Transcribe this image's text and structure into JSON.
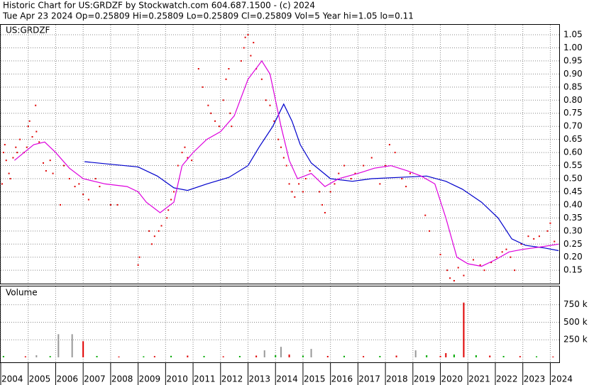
{
  "chart_data": [
    {
      "type": "scatter",
      "title": "Historic Chart for US:GRDZF by Stockwatch.com 604.687.1500 - (c) 2024",
      "subtitle": "Tue Apr 23 2024   Op=0.25809   Hi=0.25809   Lo=0.25809   Cl=0.25809   Vol=5   Year hi=1.05   lo=0.11",
      "annotation": "US:GRDZF",
      "xlim": [
        2004,
        2024.35
      ],
      "xticks": [
        2004,
        2005,
        2006,
        2007,
        2008,
        2009,
        2010,
        2011,
        2012,
        2013,
        2014,
        2015,
        2016,
        2017,
        2018,
        2019,
        2020,
        2021,
        2022,
        2023,
        2024
      ],
      "ylim": [
        0.099,
        1.088
      ],
      "yticks": [
        0.15,
        {
          "value": 0.2,
          "label": "0.20"
        },
        0.25,
        {
          "value": 0.3,
          "label": "0.30"
        },
        0.35,
        {
          "value": 0.4,
          "label": "0.40"
        },
        0.45,
        {
          "value": 0.5,
          "label": "0.50"
        },
        0.55,
        {
          "value": 0.6,
          "label": "0.60"
        },
        0.65,
        {
          "value": 0.7,
          "label": "0.70"
        },
        0.75,
        {
          "value": 0.8,
          "label": "0.80"
        },
        0.85,
        {
          "value": 0.9,
          "label": "0.90"
        },
        0.95,
        {
          "value": 1.0,
          "label": "1.00"
        },
        1.05
      ],
      "grid": true,
      "series": [
        {
          "type": "scatter",
          "color": "#e00000",
          "x": [
            2004.05,
            2004.1,
            2004.15,
            2004.2,
            2004.3,
            2004.35,
            2004.45,
            2004.55,
            2004.6,
            2004.7,
            2004.85,
            2004.95,
            2005.0,
            2005.05,
            2005.15,
            2005.27,
            2005.3,
            2005.4,
            2005.55,
            2005.65,
            2005.8,
            2005.9,
            2006.17,
            2006.3,
            2006.5,
            2006.7,
            2006.85,
            2007.0,
            2007.2,
            2007.45,
            2007.6,
            2008.0,
            2008.25,
            2009.0,
            2009.05,
            2009.4,
            2009.5,
            2009.6,
            2009.75,
            2009.85,
            2010.05,
            2010.1,
            2010.2,
            2010.3,
            2010.45,
            2010.6,
            2010.7,
            2010.8,
            2010.95,
            2011.2,
            2011.35,
            2011.55,
            2011.65,
            2011.8,
            2011.95,
            2012.1,
            2012.2,
            2012.3,
            2012.35,
            2012.4,
            2012.75,
            2012.85,
            2012.9,
            2013.0,
            2013.1,
            2013.2,
            2013.3,
            2013.5,
            2013.65,
            2013.8,
            2013.95,
            2014.1,
            2014.2,
            2014.3,
            2014.4,
            2014.5,
            2014.6,
            2014.7,
            2014.85,
            2015.0,
            2015.1,
            2015.25,
            2015.6,
            2015.7,
            2015.8,
            2016.0,
            2016.15,
            2016.3,
            2016.5,
            2016.75,
            2016.9,
            2017.2,
            2017.5,
            2017.8,
            2018.0,
            2018.15,
            2018.35,
            2018.6,
            2018.75,
            2018.9,
            2019.45,
            2019.6,
            2020.0,
            2020.25,
            2020.35,
            2020.5,
            2020.65,
            2020.85,
            2021.2,
            2021.45,
            2021.6,
            2021.85,
            2022.05,
            2022.25,
            2022.4,
            2022.55,
            2022.7,
            2022.95,
            2023.2,
            2023.4,
            2023.6,
            2023.9,
            2024.0,
            2024.15
          ],
          "values": [
            0.48,
            0.6,
            0.63,
            0.57,
            0.52,
            0.5,
            0.58,
            0.62,
            0.6,
            0.65,
            0.6,
            0.62,
            0.7,
            0.72,
            0.66,
            0.78,
            0.68,
            0.64,
            0.56,
            0.53,
            0.57,
            0.52,
            0.4,
            0.55,
            0.5,
            0.47,
            0.48,
            0.44,
            0.42,
            0.5,
            0.47,
            0.4,
            0.4,
            0.17,
            0.2,
            0.3,
            0.25,
            0.28,
            0.3,
            0.32,
            0.35,
            0.38,
            0.42,
            0.45,
            0.55,
            0.6,
            0.62,
            0.58,
            0.57,
            0.92,
            0.85,
            0.78,
            0.75,
            0.72,
            0.7,
            0.8,
            0.88,
            0.92,
            0.75,
            0.7,
            0.95,
            1.0,
            1.04,
            1.05,
            0.97,
            1.02,
            0.92,
            0.88,
            0.8,
            0.78,
            0.72,
            0.65,
            0.62,
            0.58,
            0.55,
            0.48,
            0.45,
            0.43,
            0.48,
            0.45,
            0.5,
            0.53,
            0.45,
            0.4,
            0.37,
            0.45,
            0.48,
            0.52,
            0.55,
            0.5,
            0.52,
            0.55,
            0.58,
            0.48,
            0.55,
            0.63,
            0.6,
            0.5,
            0.47,
            0.52,
            0.36,
            0.3,
            0.21,
            0.15,
            0.12,
            0.11,
            0.16,
            0.13,
            0.19,
            0.17,
            0.15,
            0.18,
            0.2,
            0.22,
            0.23,
            0.2,
            0.15,
            0.25,
            0.28,
            0.27,
            0.28,
            0.3,
            0.33,
            0.26
          ]
        },
        {
          "type": "line",
          "color": "#0000cc",
          "x": [
            2007.05,
            2008,
            2009,
            2009.7,
            2010.3,
            2010.8,
            2011.5,
            2012.3,
            2013,
            2013.4,
            2013.9,
            2014.3,
            2014.6,
            2014.9,
            2015.3,
            2016,
            2016.8,
            2017.5,
            2018.5,
            2019.5,
            2020.2,
            2020.8,
            2021.5,
            2022.1,
            2022.6,
            2023.1,
            2023.8,
            2024.3
          ],
          "values": [
            0.565,
            0.555,
            0.545,
            0.51,
            0.465,
            0.455,
            0.48,
            0.505,
            0.55,
            0.62,
            0.7,
            0.785,
            0.72,
            0.63,
            0.56,
            0.5,
            0.49,
            0.5,
            0.505,
            0.51,
            0.49,
            0.46,
            0.41,
            0.35,
            0.27,
            0.245,
            0.235,
            0.225
          ]
        },
        {
          "type": "line",
          "color": "#dd00dd",
          "x": [
            2004.5,
            2005.2,
            2005.6,
            2006,
            2006.5,
            2007,
            2007.8,
            2008.6,
            2009,
            2009.3,
            2009.8,
            2010.3,
            2010.6,
            2011,
            2011.5,
            2012,
            2012.5,
            2013,
            2013.5,
            2013.8,
            2014.2,
            2014.5,
            2014.8,
            2015.3,
            2015.8,
            2016.3,
            2017,
            2017.6,
            2018.2,
            2018.8,
            2019.3,
            2019.8,
            2020.2,
            2020.6,
            2021,
            2021.5,
            2022,
            2022.5,
            2023,
            2023.7,
            2024.3
          ],
          "values": [
            0.57,
            0.63,
            0.64,
            0.6,
            0.54,
            0.5,
            0.48,
            0.47,
            0.45,
            0.41,
            0.37,
            0.41,
            0.55,
            0.6,
            0.65,
            0.68,
            0.74,
            0.88,
            0.95,
            0.9,
            0.7,
            0.57,
            0.5,
            0.52,
            0.47,
            0.5,
            0.52,
            0.54,
            0.55,
            0.53,
            0.51,
            0.48,
            0.35,
            0.2,
            0.175,
            0.165,
            0.19,
            0.22,
            0.23,
            0.24,
            0.25
          ]
        }
      ]
    },
    {
      "type": "bar",
      "title": "Volume",
      "xlim": [
        2004,
        2024.35
      ],
      "ylim": [
        0,
        1010000
      ],
      "yticks": [
        {
          "value": 250000,
          "label": "250 k"
        },
        {
          "value": 500000,
          "label": "500 k"
        },
        {
          "value": 750000,
          "label": "750 k"
        }
      ],
      "grid": true,
      "x": [
        2004.1,
        2004.9,
        2005.3,
        2005.8,
        2006.1,
        2006.6,
        2007.0,
        2007.5,
        2008.3,
        2009.2,
        2009.6,
        2010.2,
        2010.8,
        2011.4,
        2012.1,
        2012.7,
        2013.3,
        2013.6,
        2014.0,
        2014.2,
        2014.5,
        2015.0,
        2015.3,
        2015.9,
        2016.5,
        2017.2,
        2017.8,
        2018.4,
        2019.1,
        2019.5,
        2020.0,
        2020.2,
        2020.5,
        2020.85,
        2021.3,
        2021.8,
        2022.3,
        2022.9,
        2023.5,
        2024.1
      ],
      "values": [
        20000,
        15000,
        30000,
        18000,
        330000,
        330000,
        230000,
        20000,
        12000,
        15000,
        18000,
        22000,
        25000,
        20000,
        15000,
        20000,
        25000,
        100000,
        30000,
        150000,
        40000,
        25000,
        120000,
        20000,
        22000,
        18000,
        20000,
        25000,
        100000,
        30000,
        20000,
        60000,
        40000,
        780000,
        30000,
        25000,
        20000,
        18000,
        15000,
        12000
      ],
      "colors": [
        "#00aa00",
        "#e00000",
        "#999999",
        "#00aa00",
        "#999999",
        "#999999",
        "#e00000",
        "#00aa00",
        "#e00000",
        "#00aa00",
        "#e00000",
        "#00aa00",
        "#e00000",
        "#00aa00",
        "#e00000",
        "#00aa00",
        "#e00000",
        "#999999",
        "#00aa00",
        "#999999",
        "#e00000",
        "#00aa00",
        "#999999",
        "#e00000",
        "#00aa00",
        "#e00000",
        "#00aa00",
        "#e00000",
        "#999999",
        "#00aa00",
        "#e00000",
        "#e00000",
        "#00aa00",
        "#e00000",
        "#00aa00",
        "#e00000",
        "#00aa00",
        "#e00000",
        "#00aa00",
        "#e00000"
      ]
    }
  ]
}
